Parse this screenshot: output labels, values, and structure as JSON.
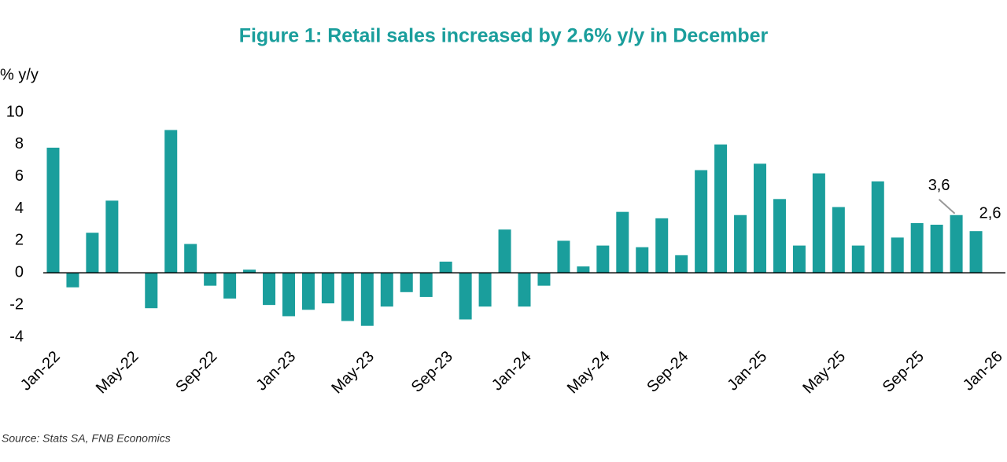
{
  "chart_data": {
    "type": "bar",
    "title": "Figure 1: Retail sales increased by 2.6% y/y in December",
    "y_label": "% y/y",
    "source": "Source: Stats SA, FNB Economics",
    "color": "#1a9e9c",
    "categories": [
      "Jan-22",
      null,
      null,
      null,
      "May-22",
      null,
      null,
      null,
      "Sep-22",
      null,
      null,
      null,
      "Jan-23",
      null,
      null,
      null,
      "May-23",
      null,
      null,
      null,
      "Sep-23",
      null,
      null,
      null,
      "Jan-24",
      null,
      null,
      null,
      "May-24",
      null,
      null,
      null,
      "Sep-24",
      null,
      null,
      null,
      "Jan-25",
      null,
      null,
      null,
      "May-25",
      null,
      null,
      null,
      "Sep-25",
      null,
      null,
      null,
      "Jan-26"
    ],
    "values": [
      7.8,
      -0.9,
      2.5,
      4.5,
      0,
      -2.2,
      8.9,
      1.8,
      -0.8,
      -1.6,
      0.2,
      -2.0,
      -2.7,
      -2.3,
      -1.9,
      -3.0,
      -3.3,
      -2.1,
      -1.2,
      -1.5,
      0.7,
      -2.9,
      -2.1,
      2.7,
      -2.1,
      -0.8,
      2.0,
      0.4,
      1.7,
      3.8,
      1.6,
      3.4,
      1.1,
      6.4,
      8.0,
      3.6,
      6.8,
      4.6,
      1.7,
      6.2,
      4.1,
      1.7,
      5.7,
      2.2,
      3.1,
      3.0,
      3.6,
      2.6,
      null
    ],
    "value_labels": [
      null,
      null,
      null,
      null,
      null,
      null,
      null,
      null,
      null,
      null,
      null,
      null,
      null,
      null,
      null,
      null,
      null,
      null,
      null,
      null,
      null,
      null,
      null,
      null,
      null,
      null,
      null,
      null,
      null,
      null,
      null,
      null,
      null,
      null,
      null,
      null,
      null,
      null,
      null,
      null,
      null,
      null,
      null,
      null,
      null,
      null,
      "3,6",
      "2,6",
      null
    ],
    "ylim": [
      -4,
      10
    ],
    "yticks": [
      -4,
      -2,
      0,
      2,
      4,
      6,
      8,
      10
    ],
    "grid": false
  }
}
